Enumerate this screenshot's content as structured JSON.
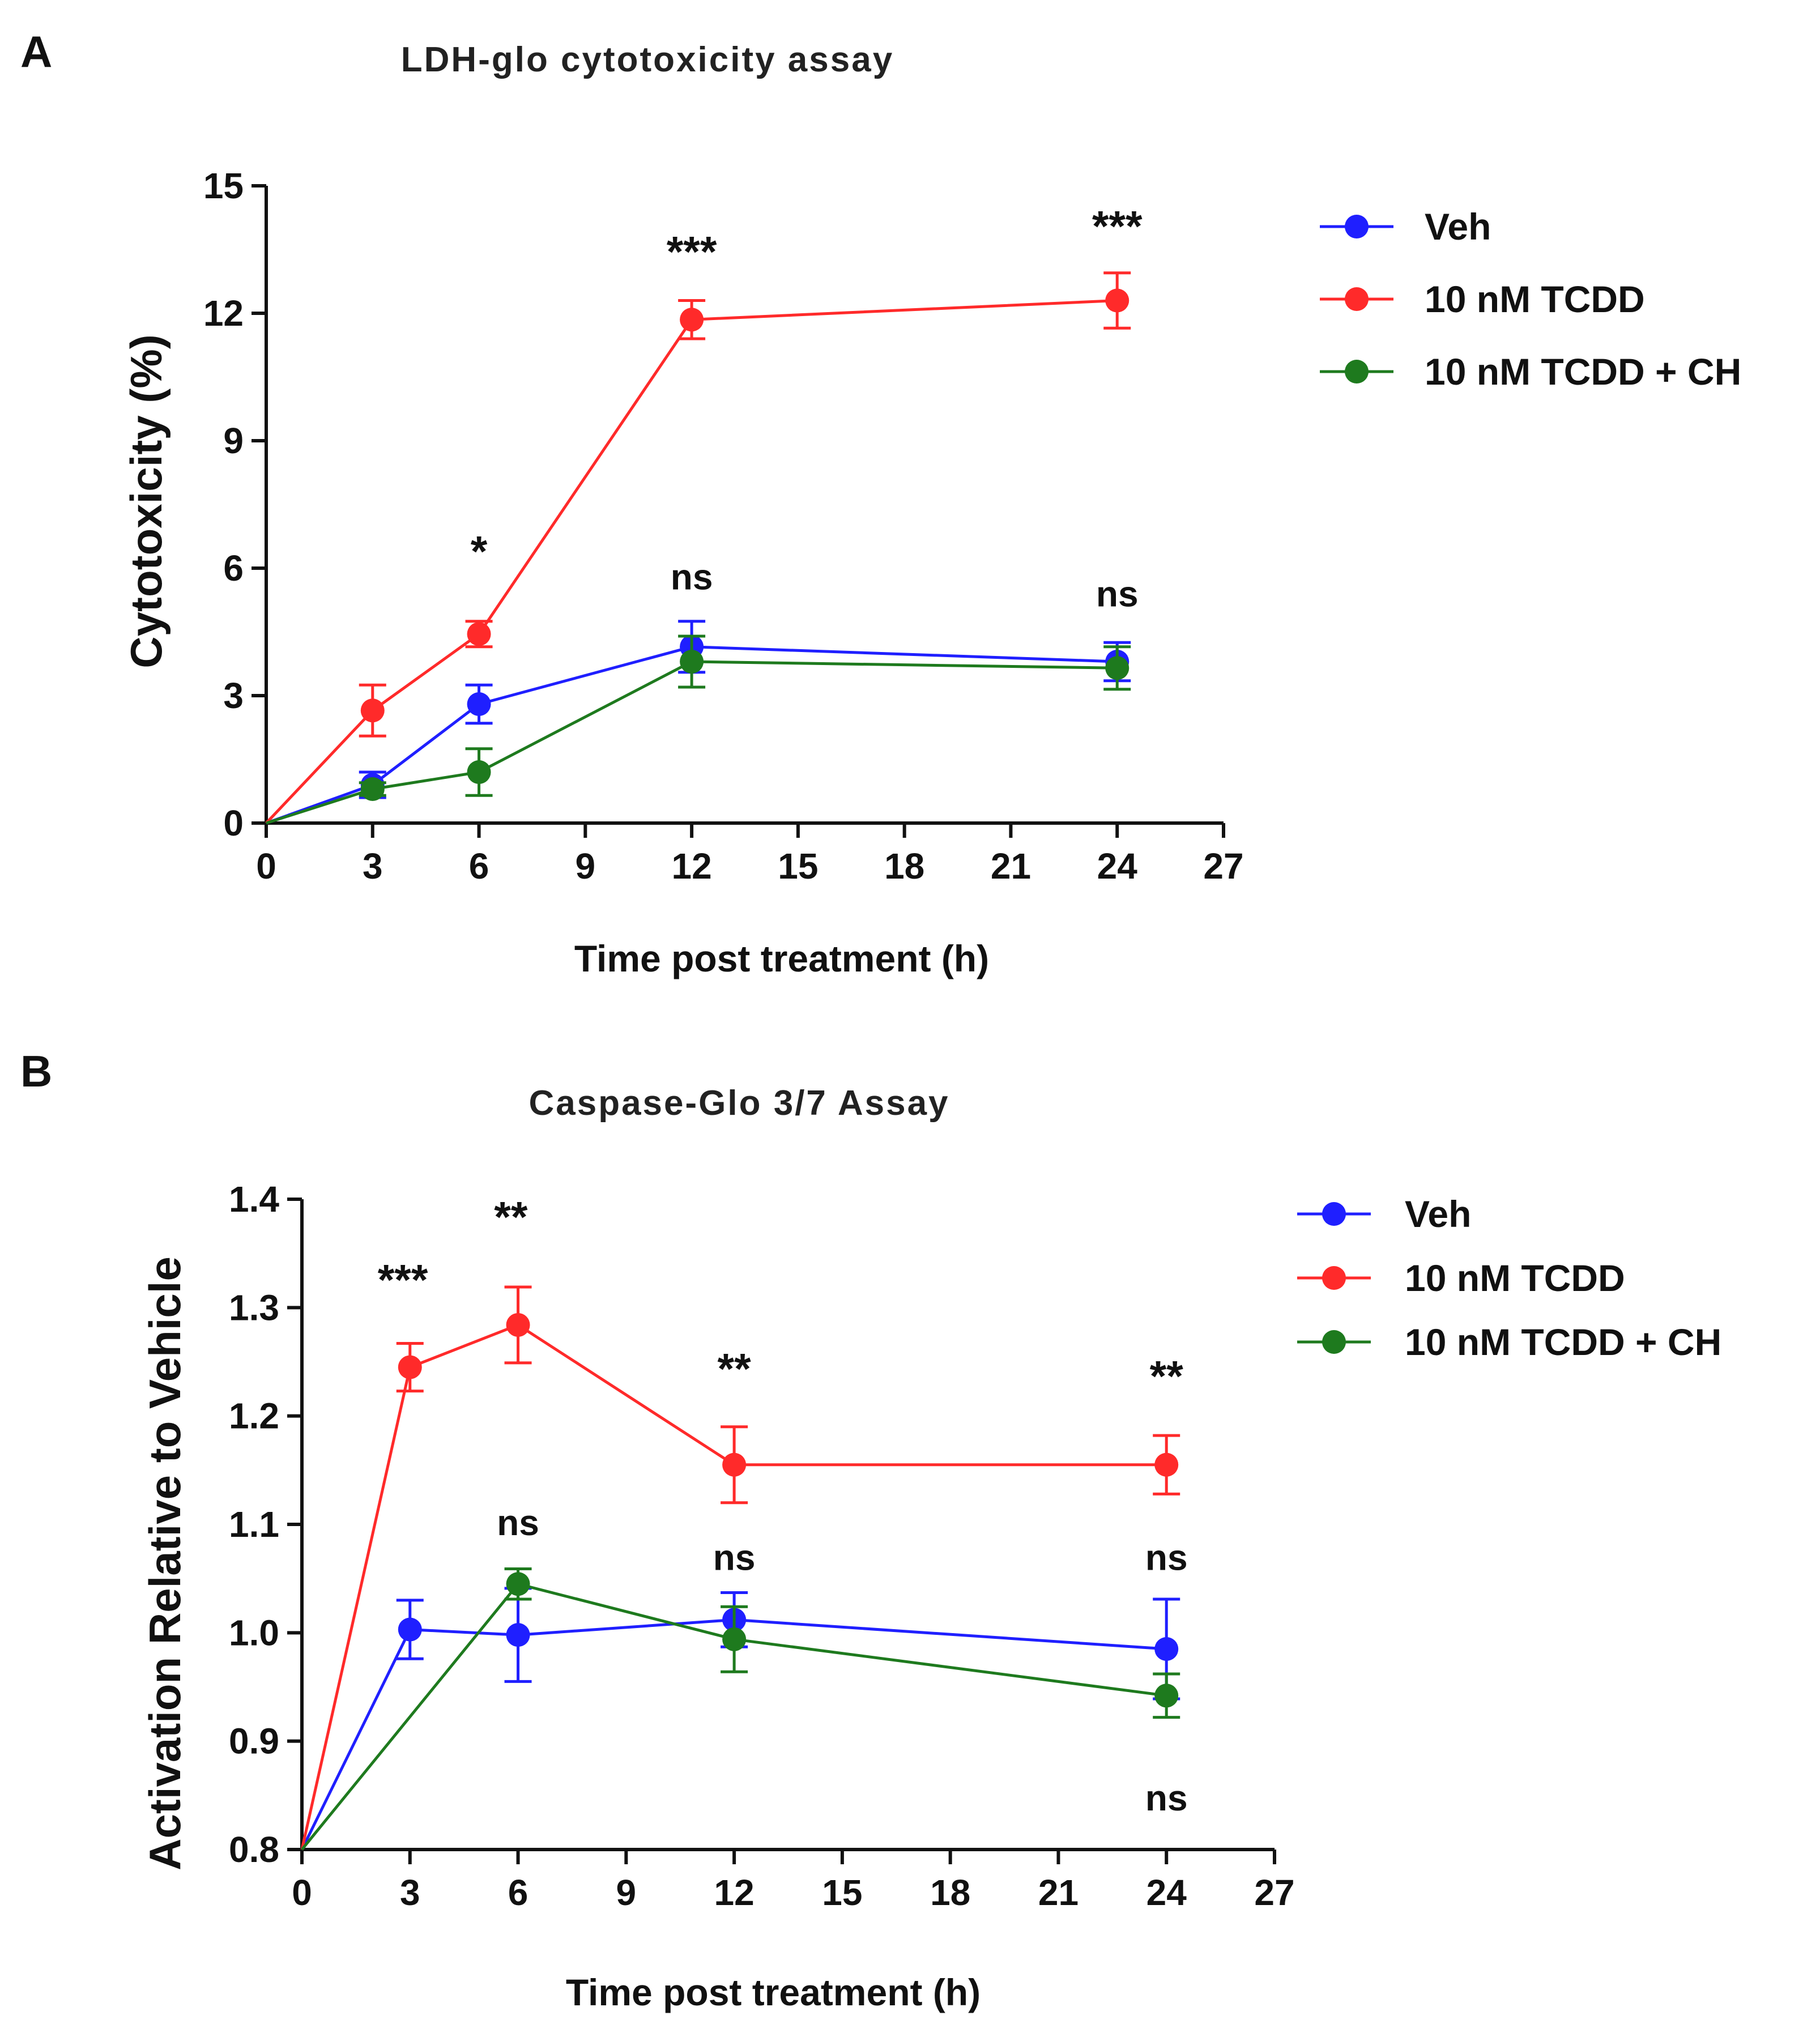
{
  "chart_data": [
    {
      "type": "line",
      "panel_label": "A",
      "title": "LDH-glo cytotoxicity assay",
      "xlabel": "Time post treatment (h)",
      "ylabel": "Cytotoxicity (%)",
      "xlim": [
        0,
        27
      ],
      "ylim": [
        0,
        15
      ],
      "xticks": [
        0,
        3,
        6,
        9,
        12,
        15,
        18,
        21,
        24,
        27
      ],
      "yticks": [
        0,
        3,
        6,
        9,
        12,
        15
      ],
      "x": [
        0,
        3,
        6,
        12,
        24
      ],
      "legend_position": "top-right",
      "series": [
        {
          "name": "Veh",
          "color": "#1f1fff",
          "values": [
            0,
            0.9,
            2.8,
            4.15,
            3.8
          ],
          "errors": [
            0,
            0.3,
            0.45,
            0.6,
            0.45
          ]
        },
        {
          "name": "10 nM TCDD",
          "color": "#ff2a2a",
          "values": [
            0,
            2.65,
            4.45,
            11.85,
            12.3
          ],
          "errors": [
            0,
            0.6,
            0.3,
            0.45,
            0.65
          ]
        },
        {
          "name": "10 nM TCDD + CH",
          "color": "#1e7a1e",
          "values": [
            0,
            0.8,
            1.2,
            3.8,
            3.65
          ],
          "errors": [
            0,
            0.15,
            0.55,
            0.6,
            0.5
          ]
        }
      ],
      "annotations": [
        {
          "text": "*",
          "x": 6,
          "y": 6.05,
          "style": "stars"
        },
        {
          "text": "***",
          "x": 12,
          "y": 13.1,
          "style": "stars"
        },
        {
          "text": "***",
          "x": 24,
          "y": 13.7,
          "style": "stars"
        },
        {
          "text": "ns",
          "x": 12,
          "y": 5.5,
          "style": "ns"
        },
        {
          "text": "ns",
          "x": 24,
          "y": 5.1,
          "style": "ns"
        }
      ]
    },
    {
      "type": "line",
      "panel_label": "B",
      "title": "Caspase-Glo 3/7 Assay",
      "xlabel": "Time post treatment (h)",
      "ylabel": "Activation  Relative to Vehicle",
      "xlim": [
        0,
        27
      ],
      "ylim": [
        0.8,
        1.4
      ],
      "xticks": [
        0,
        3,
        6,
        9,
        12,
        15,
        18,
        21,
        24,
        27
      ],
      "yticks": [
        0.8,
        0.9,
        1.0,
        1.1,
        1.2,
        1.3,
        1.4
      ],
      "x": [
        0,
        3,
        6,
        12,
        24
      ],
      "legend_position": "top-right",
      "series": [
        {
          "name": "Veh",
          "color": "#1f1fff",
          "values": [
            0.8,
            1.003,
            0.998,
            1.012,
            0.985
          ],
          "errors": [
            0,
            0.027,
            0.043,
            0.025,
            0.046
          ]
        },
        {
          "name": "10 nM TCDD",
          "color": "#ff2a2a",
          "values": [
            0.8,
            1.245,
            1.284,
            1.155,
            1.155
          ],
          "errors": [
            0,
            0.022,
            0.035,
            0.035,
            0.027
          ]
        },
        {
          "name": "10 nM TCDD + CH",
          "color": "#1e7a1e",
          "values": [
            0.8,
            null,
            1.045,
            0.994,
            0.942
          ],
          "errors": [
            0,
            null,
            0.014,
            0.03,
            0.02
          ]
        }
      ],
      "annotations": [
        {
          "text": "***",
          "x": 2.8,
          "y": 1.312,
          "style": "stars"
        },
        {
          "text": "**",
          "x": 5.8,
          "y": 1.37,
          "style": "stars"
        },
        {
          "text": "**",
          "x": 12,
          "y": 1.23,
          "style": "stars"
        },
        {
          "text": "**",
          "x": 24,
          "y": 1.223,
          "style": "stars"
        },
        {
          "text": "ns",
          "x": 6,
          "y": 1.09,
          "style": "ns"
        },
        {
          "text": "ns",
          "x": 12,
          "y": 1.058,
          "style": "ns"
        },
        {
          "text": "ns",
          "x": 24,
          "y": 1.058,
          "style": "ns"
        },
        {
          "text": "ns",
          "x": 24,
          "y": 0.836,
          "style": "ns"
        }
      ]
    }
  ]
}
